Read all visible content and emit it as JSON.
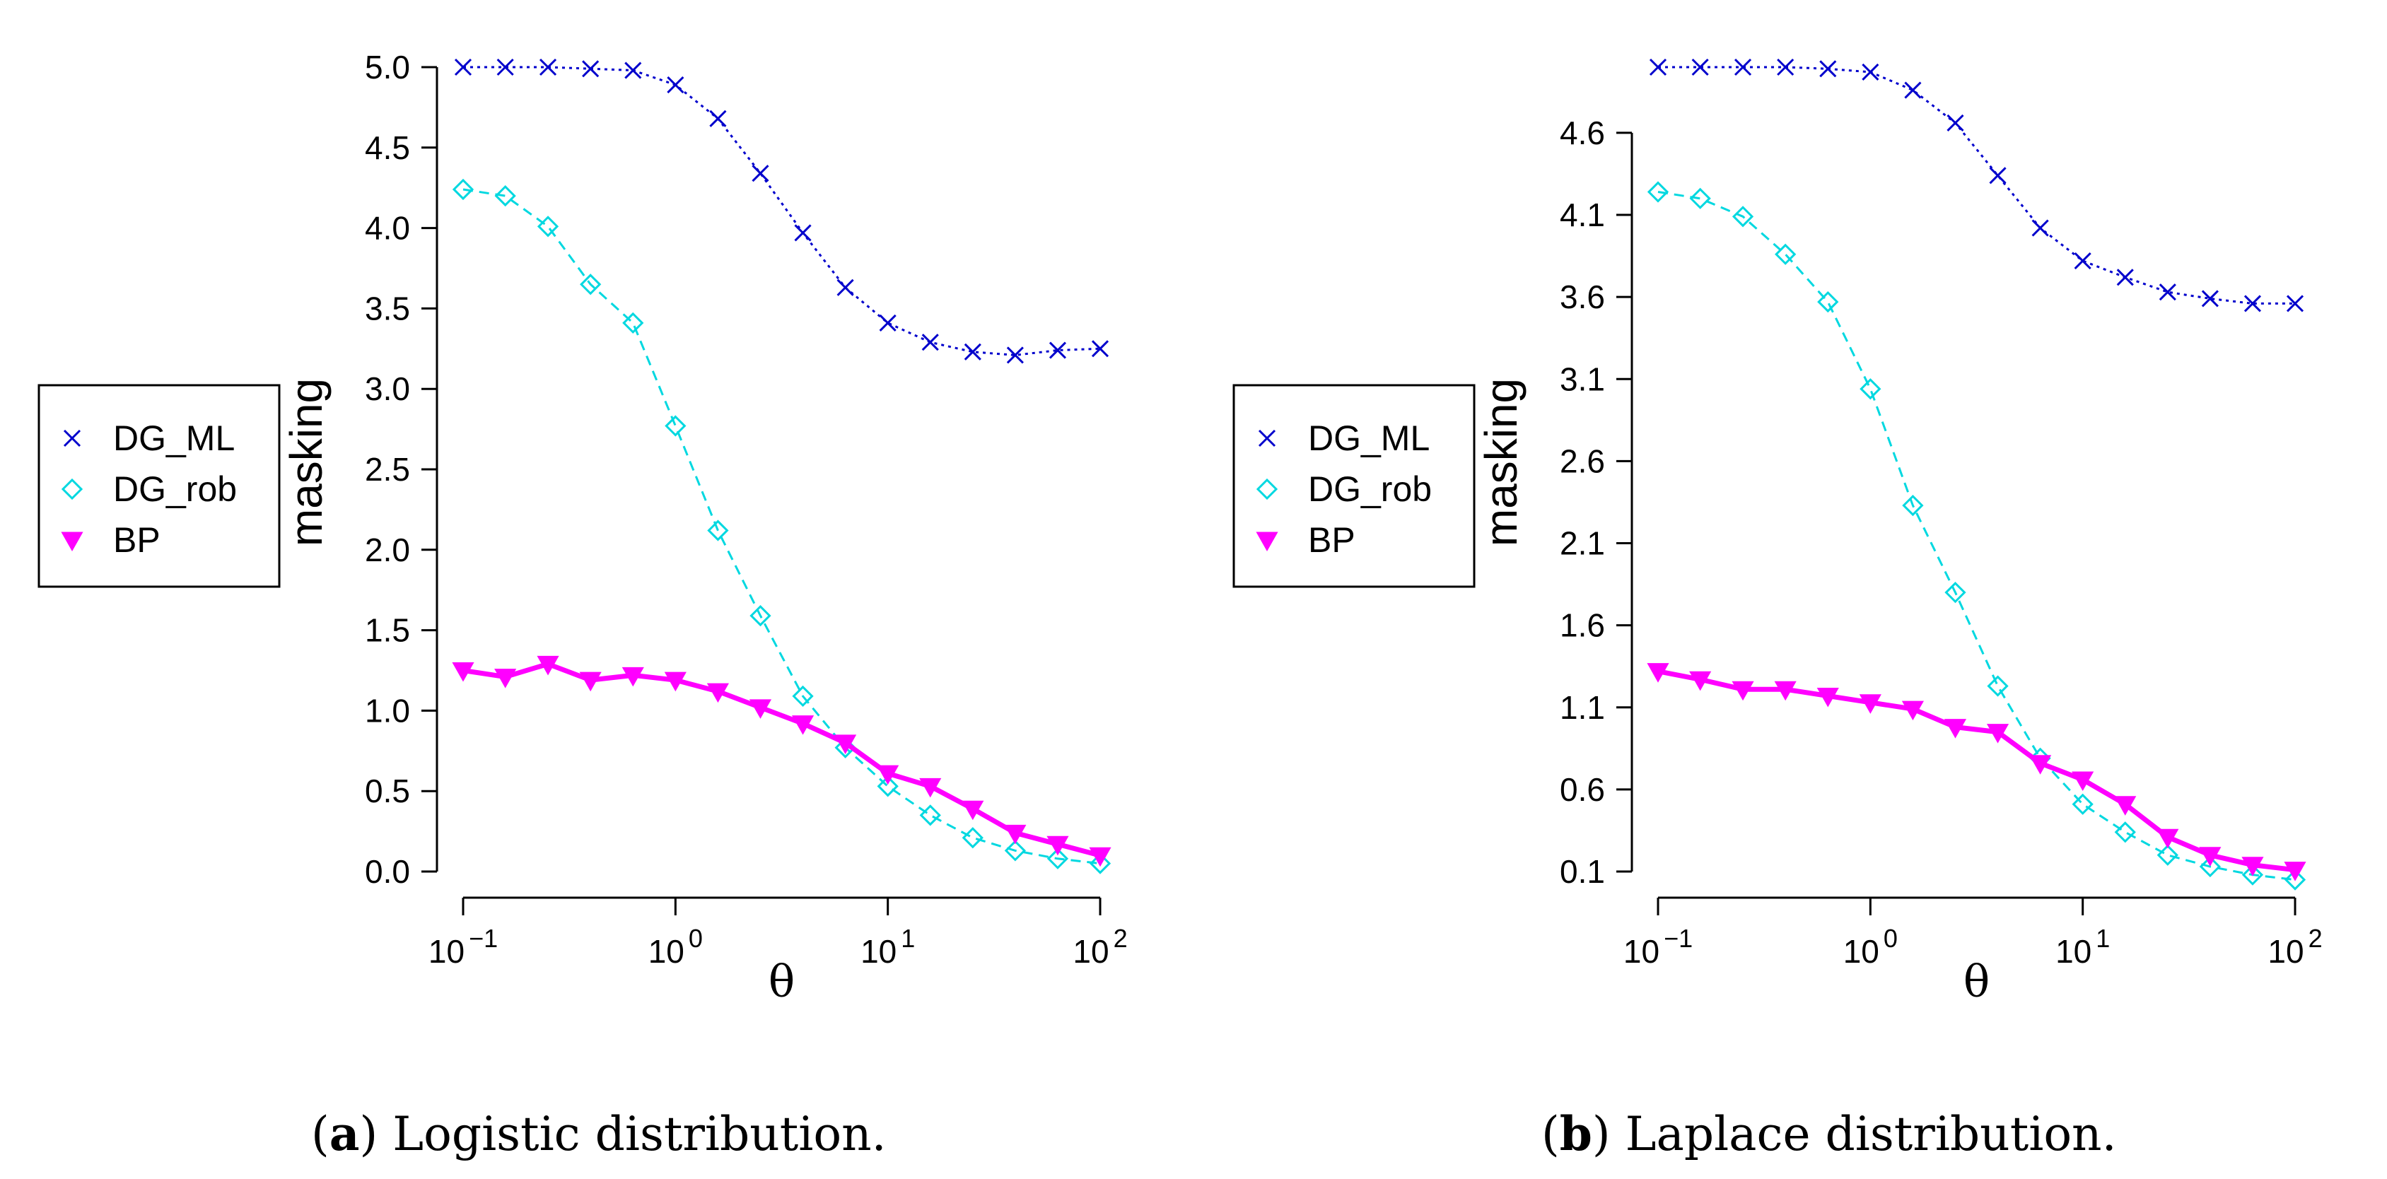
{
  "chart_data": [
    {
      "type": "line",
      "caption_letter": "a",
      "caption_text": "Logistic distribution.",
      "xlabel": "θ",
      "ylabel": "masking",
      "x_scale": "log",
      "xlim": [
        0.1,
        100
      ],
      "x_tick_labels": [
        {
          "base": "10",
          "exp": "−1"
        },
        {
          "base": "10",
          "exp": "0"
        },
        {
          "base": "10",
          "exp": "1"
        },
        {
          "base": "10",
          "exp": "2"
        }
      ],
      "ylim": [
        0.0,
        5.0
      ],
      "y_ticks": [
        "0.0",
        "0.5",
        "1.0",
        "1.5",
        "2.0",
        "2.5",
        "3.0",
        "3.5",
        "4.0",
        "4.5",
        "5.0"
      ],
      "grid": false,
      "legend_position": "left",
      "x": [
        0.1,
        0.158,
        0.251,
        0.398,
        0.631,
        1.0,
        1.585,
        2.512,
        3.981,
        6.31,
        10.0,
        15.85,
        25.12,
        39.81,
        63.1,
        100.0
      ],
      "series": [
        {
          "name": "DG_ML",
          "color": "#0000cc",
          "marker": "x",
          "line": "dotted",
          "values": [
            5.0,
            5.0,
            5.0,
            4.99,
            4.98,
            4.89,
            4.68,
            4.34,
            3.97,
            3.63,
            3.41,
            3.29,
            3.23,
            3.21,
            3.24,
            3.25
          ]
        },
        {
          "name": "DG_rob",
          "color": "#00d8e0",
          "marker": "diamond",
          "line": "dashed",
          "values": [
            4.24,
            4.2,
            4.01,
            3.65,
            3.41,
            2.77,
            2.12,
            1.59,
            1.09,
            0.77,
            0.53,
            0.35,
            0.21,
            0.13,
            0.08,
            0.05
          ]
        },
        {
          "name": "BP",
          "color": "#ff00ff",
          "marker": "triangle-down",
          "line": "solid",
          "values": [
            1.25,
            1.21,
            1.29,
            1.19,
            1.22,
            1.19,
            1.12,
            1.02,
            0.92,
            0.8,
            0.61,
            0.53,
            0.39,
            0.24,
            0.17,
            0.1
          ]
        }
      ]
    },
    {
      "type": "line",
      "caption_letter": "b",
      "caption_text": "Laplace distribution.",
      "xlabel": "θ",
      "ylabel": "masking",
      "x_scale": "log",
      "xlim": [
        0.1,
        100
      ],
      "x_tick_labels": [
        {
          "base": "10",
          "exp": "−1"
        },
        {
          "base": "10",
          "exp": "0"
        },
        {
          "base": "10",
          "exp": "1"
        },
        {
          "base": "10",
          "exp": "2"
        }
      ],
      "ylim": [
        0.1,
        5.0
      ],
      "y_ticks": [
        "0.1",
        "0.6",
        "1.1",
        "1.6",
        "2.1",
        "2.6",
        "3.1",
        "3.6",
        "4.1",
        "4.6"
      ],
      "grid": false,
      "legend_position": "left",
      "x": [
        0.1,
        0.158,
        0.251,
        0.398,
        0.631,
        1.0,
        1.585,
        2.512,
        3.981,
        6.31,
        10.0,
        15.85,
        25.12,
        39.81,
        63.1,
        100.0
      ],
      "series": [
        {
          "name": "DG_ML",
          "color": "#0000cc",
          "marker": "x",
          "line": "dotted",
          "values": [
            5.0,
            5.0,
            5.0,
            5.0,
            4.99,
            4.97,
            4.86,
            4.66,
            4.34,
            4.02,
            3.82,
            3.72,
            3.63,
            3.59,
            3.56,
            3.56
          ]
        },
        {
          "name": "DG_rob",
          "color": "#00d8e0",
          "marker": "diamond",
          "line": "dashed",
          "values": [
            4.24,
            4.2,
            4.09,
            3.86,
            3.57,
            3.04,
            2.33,
            1.8,
            1.23,
            0.79,
            0.51,
            0.34,
            0.2,
            0.13,
            0.08,
            0.05
          ]
        },
        {
          "name": "BP",
          "color": "#ff00ff",
          "marker": "triangle-down",
          "line": "solid",
          "values": [
            1.32,
            1.27,
            1.21,
            1.21,
            1.17,
            1.13,
            1.09,
            0.98,
            0.95,
            0.76,
            0.66,
            0.51,
            0.31,
            0.2,
            0.14,
            0.11
          ]
        }
      ]
    }
  ]
}
